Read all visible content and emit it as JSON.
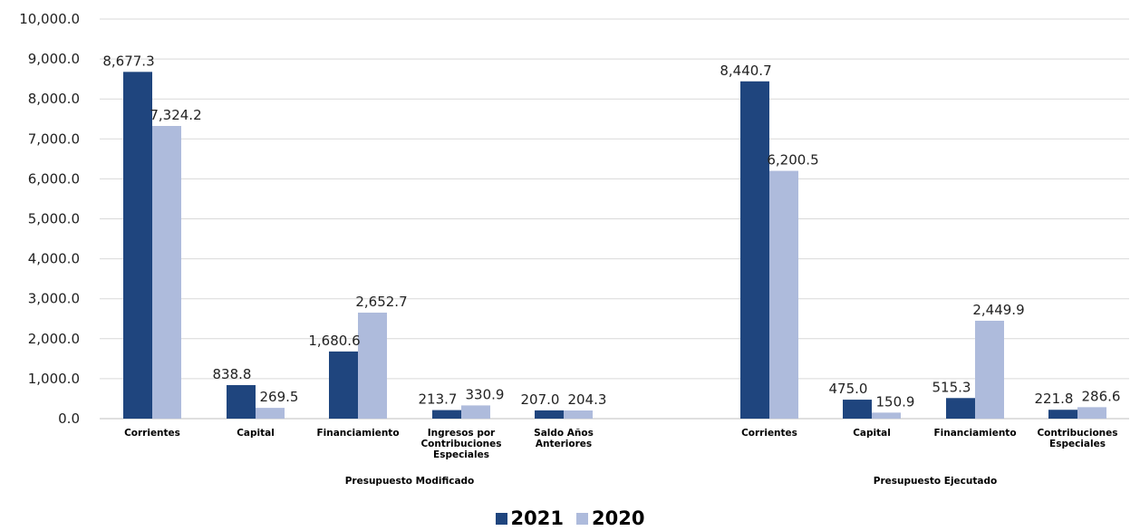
{
  "chart_data": {
    "type": "bar",
    "title": "",
    "ylim": [
      0,
      10000
    ],
    "y_ticks": [
      "0.0",
      "1,000.0",
      "2,000.0",
      "3,000.0",
      "4,000.0",
      "5,000.0",
      "6,000.0",
      "7,000.0",
      "8,000.0",
      "9,000.0",
      "10,000.0"
    ],
    "grid": true,
    "legend_position": "bottom-center",
    "groups": [
      {
        "name": "Presupuesto Modificado",
        "categories": [
          [
            "Corrientes"
          ],
          [
            "Capital"
          ],
          [
            "Financiamiento"
          ],
          [
            "Ingresos por",
            "Contribuciones",
            "Especiales"
          ],
          [
            "Saldo Años",
            "Anteriores"
          ]
        ]
      },
      {
        "name": "Presupuesto Ejecutado",
        "categories": [
          [
            "Corrientes"
          ],
          [
            "Capital"
          ],
          [
            "Financiamiento"
          ],
          [
            "Contribuciones",
            "Especiales"
          ]
        ]
      }
    ],
    "series": [
      {
        "name": "2021",
        "color": "#1f457e",
        "values": [
          8677.3,
          838.8,
          1680.6,
          213.7,
          207.0,
          8440.7,
          475.0,
          515.3,
          221.8
        ],
        "labels": [
          "8,677.3",
          "838.8",
          "1,680.6",
          "213.7",
          "207.0",
          "8,440.7",
          "475.0",
          "515.3",
          "221.8"
        ]
      },
      {
        "name": "2020",
        "color": "#aebbdc",
        "values": [
          7324.2,
          269.5,
          2652.7,
          330.9,
          204.3,
          6200.5,
          150.9,
          2449.9,
          286.6
        ],
        "labels": [
          "7,324.2",
          "269.5",
          "2,652.7",
          "330.9",
          "204.3",
          "6,200.5",
          "150.9",
          "2,449.9",
          "286.6"
        ]
      }
    ]
  }
}
